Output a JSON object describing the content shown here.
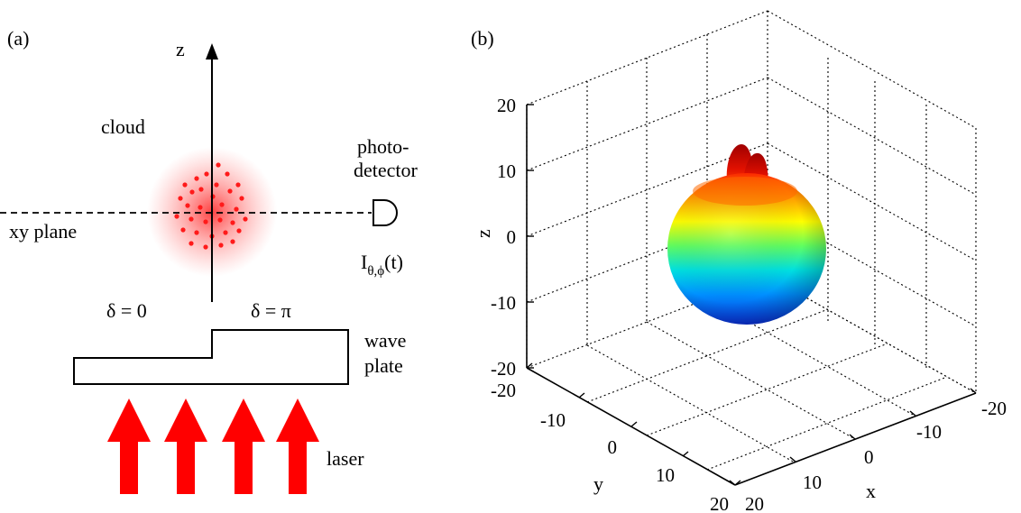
{
  "panel_a": {
    "tag": "(a)",
    "axis_label": "z",
    "cloud_label": "cloud",
    "plane_label": "xy plane",
    "detector_label_line1": "photo-",
    "detector_label_line2": "detector",
    "intensity_base": "I",
    "intensity_sub": "θ,ϕ",
    "intensity_arg": "(t)",
    "delta_left": "δ = 0",
    "delta_right": "δ = π",
    "waveplate_line1": "wave",
    "waveplate_line2": "plate",
    "laser_label": "laser",
    "colors": {
      "cloud": "#ff2020",
      "laser": "#ff0000"
    }
  },
  "panel_b": {
    "tag": "(b)",
    "z_label": "z",
    "x_label": "x",
    "y_label": "y",
    "z_ticks": [
      "20",
      "10",
      "0",
      "-10",
      "-20"
    ],
    "y_ticks": [
      "-20",
      "-10",
      "0",
      "10",
      "20"
    ],
    "x_ticks": [
      "20",
      "10",
      "0",
      "-10",
      "-20"
    ],
    "colormap": [
      "#0a2fd8",
      "#0090ff",
      "#00e0e0",
      "#60ff60",
      "#ffff00",
      "#ff9a00",
      "#ff2a00",
      "#b00000"
    ]
  }
}
